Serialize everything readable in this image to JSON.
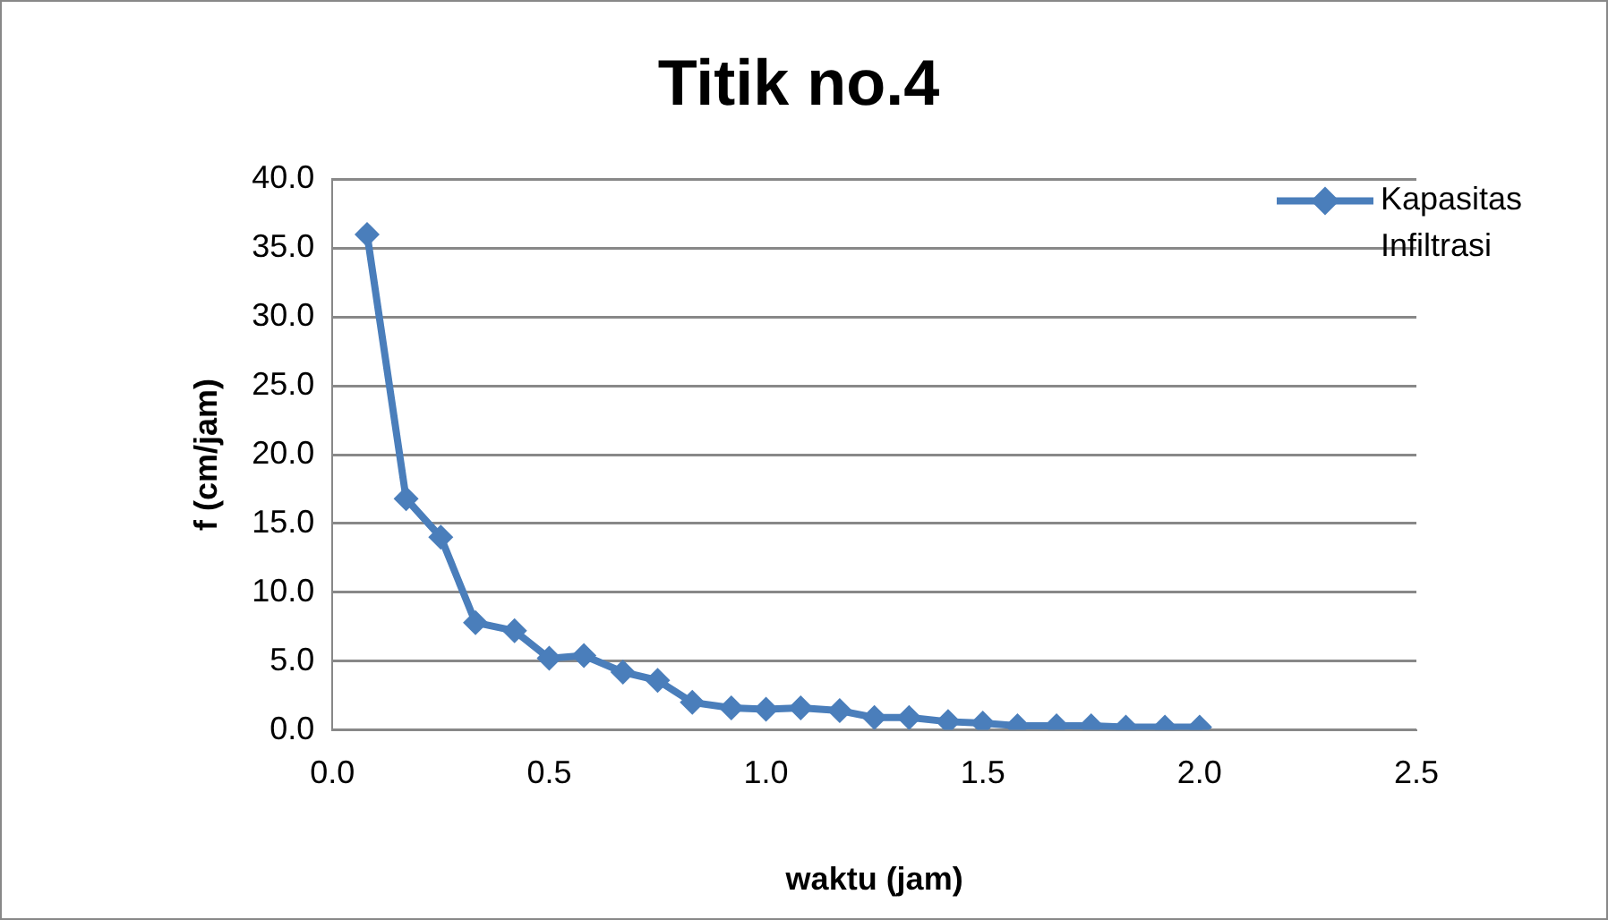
{
  "chart_data": {
    "type": "line",
    "title": "Titik no.4",
    "xlabel": "waktu (jam)",
    "ylabel": "f (cm/jam)",
    "x": [
      0.08,
      0.17,
      0.25,
      0.33,
      0.42,
      0.5,
      0.58,
      0.67,
      0.75,
      0.83,
      0.92,
      1.0,
      1.08,
      1.17,
      1.25,
      1.33,
      1.42,
      1.5,
      1.58,
      1.67,
      1.75,
      1.83,
      1.92,
      2.0
    ],
    "series": [
      {
        "name": "Kapasitas Infiltrasi",
        "color": "#4a7ebb",
        "values": [
          36,
          16.8,
          14,
          7.8,
          7.2,
          5.2,
          5.4,
          4.2,
          3.6,
          2.0,
          1.6,
          1.5,
          1.6,
          1.4,
          0.9,
          0.9,
          0.6,
          0.5,
          0.3,
          0.3,
          0.3,
          0.2,
          0.2,
          0.2
        ]
      }
    ],
    "xlim": [
      0,
      2.5
    ],
    "xticks": [
      {
        "value": 0,
        "label": "0.0"
      },
      0.5,
      {
        "value": 1,
        "label": "1.0"
      },
      1.5,
      {
        "value": 2,
        "label": "2.0"
      },
      2.5
    ],
    "ylim": [
      0,
      40
    ],
    "yticks": [
      {
        "value": 0,
        "label": "0.0"
      },
      {
        "value": 5,
        "label": "5.0"
      },
      {
        "value": 10,
        "label": "10.0"
      },
      {
        "value": 15,
        "label": "15.0"
      },
      {
        "value": 20,
        "label": "20.0"
      },
      {
        "value": 25,
        "label": "25.0"
      },
      {
        "value": 30,
        "label": "30.0"
      },
      {
        "value": 35,
        "label": "35.0"
      },
      {
        "value": 40,
        "label": "40.0"
      }
    ],
    "grid": "y",
    "legend": "top right",
    "marker": "diamond",
    "line_style": "solid"
  }
}
